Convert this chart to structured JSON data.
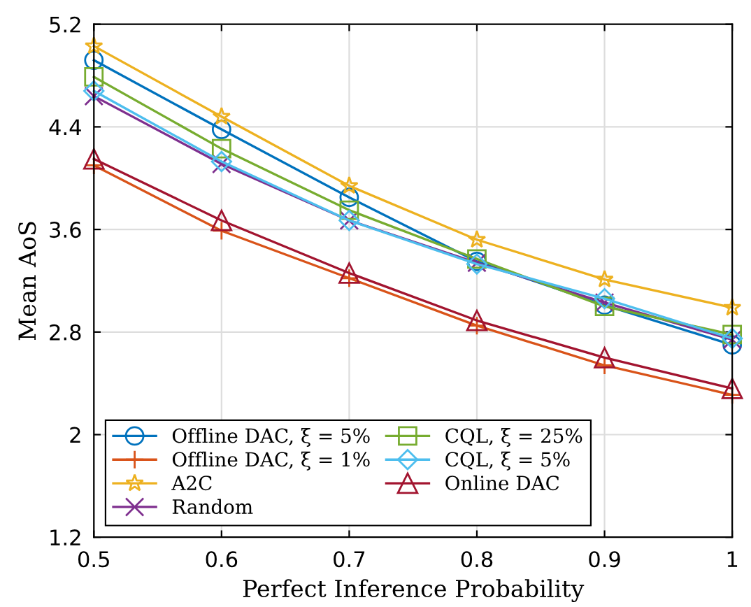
{
  "chart_data": {
    "type": "line",
    "xlabel": "Perfect Inference Probability",
    "ylabel": "Mean AoS",
    "x": [
      0.5,
      0.6,
      0.7,
      0.8,
      0.9,
      1.0
    ],
    "series": [
      {
        "name": "Offline DAC, ξ = 5%",
        "color": "#0072bd",
        "marker": "circle",
        "values": [
          4.92,
          4.38,
          3.85,
          3.35,
          3.01,
          2.7
        ]
      },
      {
        "name": "Offline DAC, ξ = 1%",
        "color": "#d95319",
        "marker": "plus",
        "values": [
          4.1,
          3.59,
          3.22,
          2.85,
          2.54,
          2.31
        ]
      },
      {
        "name": "A2C",
        "color": "#edb120",
        "marker": "star",
        "values": [
          5.03,
          4.48,
          3.94,
          3.52,
          3.21,
          2.99
        ]
      },
      {
        "name": "Random",
        "color": "#7e2f8e",
        "marker": "cross",
        "values": [
          4.64,
          4.11,
          3.67,
          3.34,
          3.03,
          2.74
        ]
      },
      {
        "name": "CQL, ξ = 25%",
        "color": "#77ac30",
        "marker": "square",
        "values": [
          4.79,
          4.23,
          3.75,
          3.37,
          3.0,
          2.78
        ]
      },
      {
        "name": "CQL, ξ = 5%",
        "color": "#4dbeee",
        "marker": "diamond",
        "values": [
          4.68,
          4.13,
          3.67,
          3.33,
          3.06,
          2.75
        ]
      },
      {
        "name": "Online DAC",
        "color": "#a2142f",
        "marker": "triangle",
        "values": [
          4.15,
          3.67,
          3.26,
          2.89,
          2.6,
          2.36
        ]
      }
    ],
    "xlim": [
      0.5,
      1.0
    ],
    "xticks": [
      0.5,
      0.6,
      0.7,
      0.8,
      0.9,
      {
        "value": 1.0,
        "label": "1"
      }
    ],
    "ylim": [
      1.2,
      5.2
    ],
    "yticks": [
      1.2,
      2,
      2.8,
      3.6,
      4.4,
      5.2
    ],
    "grid": true,
    "legend": "bottom left",
    "line_style": "solid"
  }
}
